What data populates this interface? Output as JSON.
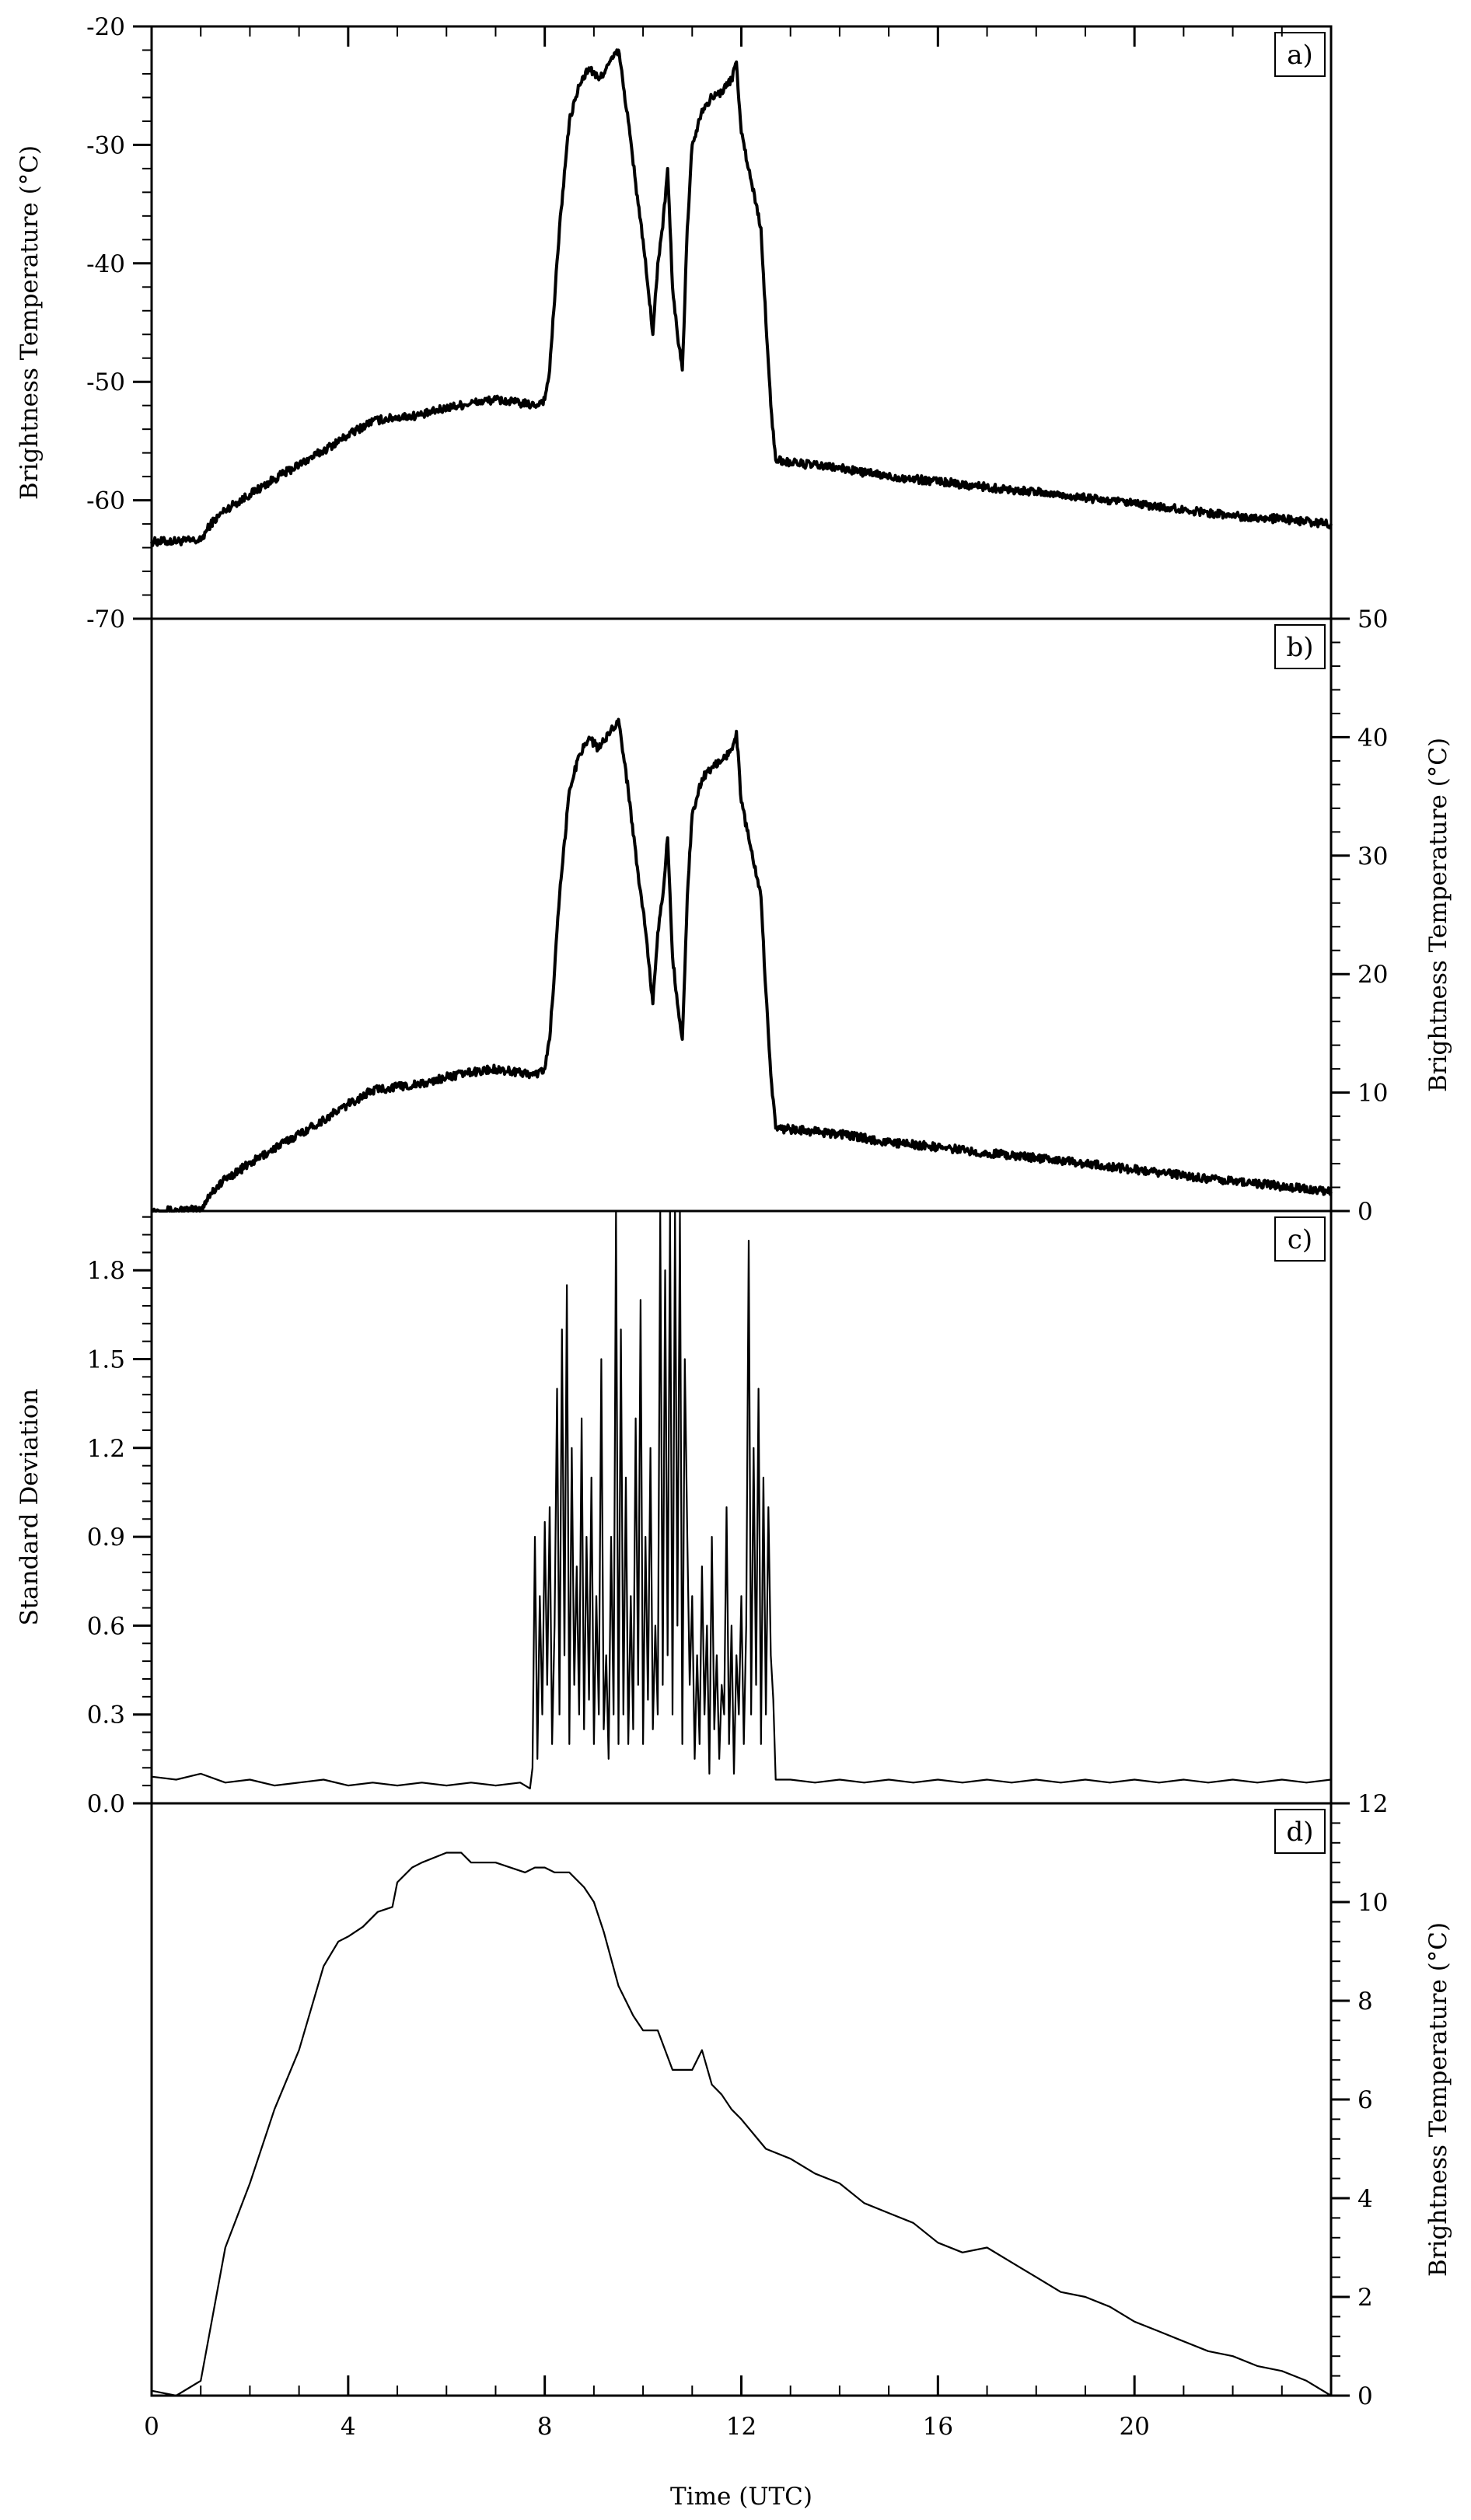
{
  "chart_data": {
    "type": "line",
    "xlabel": "Time (UTC)",
    "x_range": [
      0,
      24
    ],
    "x_ticks": [
      0,
      4,
      8,
      12,
      16,
      20
    ],
    "panels": [
      {
        "label": "a)",
        "ylabel": "Brightness Temperature (°C)",
        "ylabel_side": "left",
        "ylim": [
          -70,
          -20
        ],
        "y_ticks": [
          -70,
          -60,
          -50,
          -40,
          -30,
          -20
        ],
        "tick_side": "left",
        "line_weight": "thick",
        "noise": 0.35,
        "series": [
          {
            "x": [
              0,
              1.0,
              1.2,
              1.5,
              2.0,
              2.5,
              3.0,
              3.5,
              4.0,
              4.5,
              5.0,
              5.5,
              6.0,
              6.5,
              7.0,
              7.5,
              7.8,
              8.0,
              8.1,
              8.3,
              8.5,
              8.7,
              8.9,
              9.1,
              9.3,
              9.5,
              9.7,
              9.9,
              10.0,
              10.1,
              10.2,
              10.3,
              10.4,
              10.5,
              10.6,
              10.7,
              10.8,
              10.9,
              11.0,
              11.2,
              11.4,
              11.6,
              11.8,
              11.9,
              12.0,
              12.2,
              12.4,
              12.5,
              12.6,
              12.7,
              13,
              14,
              15,
              16,
              17,
              18,
              19,
              20,
              21,
              22,
              23,
              24
            ],
            "y": [
              -63.5,
              -63.4,
              -62,
              -60.8,
              -59.5,
              -58.2,
              -57,
              -55.8,
              -54.5,
              -53.3,
              -53,
              -52.8,
              -52.2,
              -51.8,
              -51.5,
              -51.8,
              -52,
              -51.5,
              -49,
              -37,
              -28,
              -25,
              -23.5,
              -24.5,
              -23.2,
              -22,
              -28,
              -35,
              -38,
              -42,
              -46,
              -40,
              -37,
              -32,
              -42,
              -46,
              -49,
              -37,
              -30,
              -27,
              -26,
              -25.5,
              -24.5,
              -23,
              -29,
              -33,
              -37,
              -45,
              -52,
              -56.6,
              -56.8,
              -57.3,
              -58,
              -58.4,
              -58.9,
              -59.3,
              -59.8,
              -60.3,
              -60.8,
              -61.3,
              -61.6,
              -62
            ]
          }
        ]
      },
      {
        "label": "b)",
        "ylabel": "Brightness Temperature (°C)",
        "ylabel_side": "right",
        "ylim": [
          0,
          50
        ],
        "y_ticks": [
          0,
          10,
          20,
          30,
          40,
          50
        ],
        "tick_side": "right",
        "line_weight": "thick",
        "noise": 0.35,
        "series": [
          {
            "x": [
              0,
              1.0,
              1.2,
              1.5,
              2.0,
              2.5,
              3.0,
              3.5,
              4.0,
              4.5,
              5.0,
              5.5,
              6.0,
              6.5,
              7.0,
              7.5,
              7.8,
              8.0,
              8.1,
              8.3,
              8.5,
              8.7,
              8.9,
              9.1,
              9.3,
              9.5,
              9.7,
              9.9,
              10.0,
              10.1,
              10.2,
              10.3,
              10.4,
              10.5,
              10.6,
              10.7,
              10.8,
              10.9,
              11.0,
              11.2,
              11.4,
              11.6,
              11.8,
              11.9,
              12.0,
              12.2,
              12.4,
              12.5,
              12.6,
              12.7,
              13,
              14,
              15,
              16,
              17,
              18,
              19,
              20,
              21,
              22,
              23,
              24
            ],
            "y": [
              0,
              0.1,
              1.5,
              2.7,
              4,
              5.3,
              6.5,
              7.7,
              9,
              10.2,
              10.5,
              10.7,
              11.3,
              11.7,
              12,
              11.7,
              11.5,
              12,
              14.5,
              26.5,
              35.5,
              38.5,
              40,
              39,
              40.3,
              41.5,
              35.5,
              28.5,
              25.5,
              21.5,
              17.5,
              23.5,
              26.5,
              31.5,
              21.5,
              17.5,
              14.5,
              26.5,
              33.5,
              36.5,
              37.5,
              38,
              39,
              40.5,
              34.5,
              30.5,
              26.5,
              18.5,
              11.5,
              7,
              6.9,
              6.5,
              5.8,
              5.4,
              4.9,
              4.5,
              4,
              3.5,
              3,
              2.5,
              2.1,
              1.6
            ]
          }
        ]
      },
      {
        "label": "c)",
        "ylabel": "Standard Deviation",
        "ylabel_side": "left",
        "ylim": [
          0,
          2.0
        ],
        "y_ticks": [
          0.0,
          0.3,
          0.6,
          0.9,
          1.2,
          1.5,
          1.8
        ],
        "y_tick_labels": [
          "0.0",
          "0.3",
          "0.6",
          "0.9",
          "1.2",
          "1.5",
          "1.8"
        ],
        "tick_side": "left",
        "line_weight": "thin",
        "noise": 0,
        "series": [
          {
            "x": [
              0,
              0.5,
              1.0,
              1.5,
              2.0,
              2.5,
              3.0,
              3.5,
              4.0,
              4.5,
              5.0,
              5.5,
              6.0,
              6.5,
              7.0,
              7.5,
              7.7,
              7.75,
              7.8,
              7.85,
              7.9,
              7.95,
              8.0,
              8.05,
              8.1,
              8.15,
              8.2,
              8.25,
              8.3,
              8.35,
              8.4,
              8.45,
              8.5,
              8.55,
              8.6,
              8.65,
              8.7,
              8.75,
              8.8,
              8.85,
              8.9,
              8.95,
              9.0,
              9.05,
              9.1,
              9.15,
              9.2,
              9.25,
              9.3,
              9.35,
              9.4,
              9.45,
              9.5,
              9.55,
              9.6,
              9.65,
              9.7,
              9.75,
              9.8,
              9.85,
              9.9,
              9.95,
              10.0,
              10.05,
              10.1,
              10.15,
              10.2,
              10.25,
              10.3,
              10.35,
              10.4,
              10.45,
              10.5,
              10.55,
              10.6,
              10.65,
              10.7,
              10.75,
              10.8,
              10.85,
              10.9,
              10.95,
              11.0,
              11.05,
              11.1,
              11.15,
              11.2,
              11.25,
              11.3,
              11.35,
              11.4,
              11.45,
              11.5,
              11.55,
              11.6,
              11.65,
              11.7,
              11.75,
              11.8,
              11.85,
              11.9,
              11.95,
              12.0,
              12.05,
              12.1,
              12.15,
              12.2,
              12.25,
              12.3,
              12.35,
              12.4,
              12.45,
              12.5,
              12.55,
              12.6,
              12.65,
              12.7,
              13.0,
              13.5,
              14.0,
              14.5,
              15.0,
              15.5,
              16.0,
              16.5,
              17.0,
              17.5,
              18.0,
              18.5,
              19.0,
              19.5,
              20.0,
              20.5,
              21.0,
              21.5,
              22.0,
              22.5,
              23.0,
              23.5,
              24.0
            ],
            "y": [
              0.09,
              0.08,
              0.1,
              0.07,
              0.08,
              0.06,
              0.07,
              0.08,
              0.06,
              0.07,
              0.06,
              0.07,
              0.06,
              0.07,
              0.06,
              0.07,
              0.05,
              0.12,
              0.9,
              0.15,
              0.7,
              0.3,
              0.95,
              0.4,
              1.0,
              0.2,
              0.6,
              1.4,
              0.3,
              1.6,
              0.5,
              1.75,
              0.2,
              1.2,
              0.4,
              0.8,
              0.3,
              1.3,
              0.25,
              0.9,
              0.35,
              1.1,
              0.2,
              0.7,
              0.3,
              1.5,
              0.25,
              0.5,
              0.15,
              0.9,
              0.3,
              2.0,
              0.2,
              1.6,
              0.3,
              1.1,
              0.2,
              0.7,
              0.25,
              1.3,
              0.4,
              1.7,
              0.2,
              0.9,
              0.35,
              1.2,
              0.25,
              0.6,
              0.3,
              2.0,
              0.4,
              1.8,
              0.5,
              2.0,
              0.3,
              2.0,
              0.6,
              2.0,
              0.2,
              1.5,
              0.9,
              0.4,
              0.7,
              0.15,
              0.5,
              0.2,
              0.8,
              0.3,
              0.6,
              0.1,
              0.9,
              0.25,
              0.5,
              0.15,
              0.4,
              0.3,
              1.0,
              0.2,
              0.6,
              0.1,
              0.5,
              0.3,
              0.7,
              0.2,
              0.6,
              1.9,
              0.3,
              1.2,
              0.4,
              1.4,
              0.2,
              1.1,
              0.3,
              1.0,
              0.5,
              0.35,
              0.08,
              0.08,
              0.07,
              0.08,
              0.07,
              0.08,
              0.07,
              0.08,
              0.07,
              0.08,
              0.07,
              0.08,
              0.07,
              0.08,
              0.07,
              0.08,
              0.07,
              0.08,
              0.07,
              0.08,
              0.07,
              0.08,
              0.07,
              0.08
            ]
          }
        ]
      },
      {
        "label": "d)",
        "ylabel": "Brightness Temperature (°C)",
        "ylabel_side": "right",
        "ylim": [
          0,
          12
        ],
        "y_ticks": [
          0,
          2,
          4,
          6,
          8,
          10,
          12
        ],
        "tick_side": "right",
        "line_weight": "thin",
        "noise": 0,
        "series": [
          {
            "x": [
              0,
              0.5,
              1.0,
              1.5,
              2.0,
              2.5,
              3.0,
              3.5,
              3.8,
              4.0,
              4.3,
              4.6,
              4.9,
              5.0,
              5.3,
              5.5,
              6.0,
              6.3,
              6.5,
              7.0,
              7.3,
              7.6,
              7.8,
              8.0,
              8.2,
              8.5,
              8.8,
              9.0,
              9.2,
              9.5,
              9.8,
              10.0,
              10.3,
              10.6,
              11.0,
              11.2,
              11.4,
              11.6,
              11.8,
              12.0,
              12.5,
              13,
              13.5,
              14,
              14.5,
              15,
              15.5,
              16,
              16.5,
              17,
              17.5,
              18,
              18.5,
              19,
              19.5,
              20,
              20.5,
              21,
              21.5,
              22,
              22.5,
              23,
              23.5,
              24
            ],
            "y": [
              0.1,
              0,
              0.3,
              3.0,
              4.3,
              5.8,
              7.0,
              8.7,
              9.2,
              9.3,
              9.5,
              9.8,
              9.9,
              10.4,
              10.7,
              10.8,
              11.0,
              11.0,
              10.8,
              10.8,
              10.7,
              10.6,
              10.7,
              10.7,
              10.6,
              10.6,
              10.3,
              10.0,
              9.4,
              8.3,
              7.7,
              7.4,
              7.4,
              6.6,
              6.6,
              7.0,
              6.3,
              6.1,
              5.8,
              5.6,
              5.0,
              4.8,
              4.5,
              4.3,
              3.9,
              3.7,
              3.5,
              3.1,
              2.9,
              3.0,
              2.7,
              2.4,
              2.1,
              2.0,
              1.8,
              1.5,
              1.3,
              1.1,
              0.9,
              0.8,
              0.6,
              0.5,
              0.3,
              0
            ]
          }
        ]
      }
    ]
  }
}
